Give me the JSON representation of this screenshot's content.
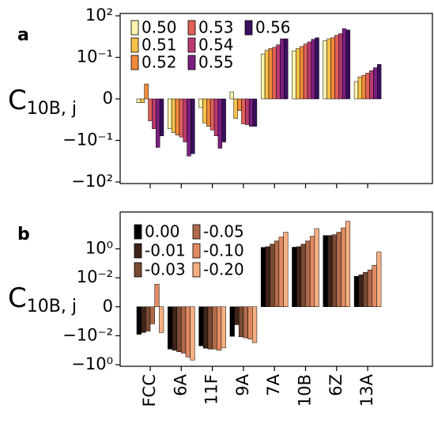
{
  "chart_data": [
    {
      "type": "bar",
      "panel": "a",
      "ylabel": "C",
      "ylabel_sub": "10B, j",
      "yscale": "symlog",
      "categories": [
        null,
        null,
        null,
        null,
        null,
        null,
        null,
        null
      ],
      "ylim": [
        -100,
        100
      ],
      "yticks": [
        {
          "value": 100,
          "label": "10²"
        },
        {
          "value": 0.1,
          "label": "10⁻¹"
        },
        0,
        {
          "value": -0.1,
          "label": "−10⁻¹"
        },
        {
          "value": -100,
          "label": "−10²"
        }
      ],
      "legend": "upper left",
      "legend_columns": 3,
      "series": [
        {
          "name": "0.50",
          "color": "#fbf3ae",
          "values": [
            -0.009,
            -0.072,
            -0.021,
            0.017,
            0.17,
            0.29,
            1.6,
            0.042
          ]
        },
        {
          "name": "0.51",
          "color": "#f8c24a",
          "values": [
            -0.009,
            -0.081,
            -0.058,
            -0.047,
            0.32,
            0.43,
            2.2,
            0.053
          ]
        },
        {
          "name": "0.52",
          "color": "#f08a3a",
          "values": [
            0.036,
            -0.087,
            -0.066,
            -0.028,
            0.43,
            0.6,
            2.6,
            0.057
          ]
        },
        {
          "name": "0.53",
          "color": "#e0605a",
          "values": [
            -0.053,
            -0.092,
            -0.075,
            -0.06,
            0.54,
            0.91,
            3.9,
            0.062
          ]
        },
        {
          "name": "0.54",
          "color": "#b83a70",
          "values": [
            -0.072,
            -0.13,
            -0.089,
            -0.062,
            0.8,
            1.3,
            5.1,
            0.068
          ]
        },
        {
          "name": "0.55",
          "color": "#7a1f80",
          "values": [
            -0.32,
            -1.35,
            -0.37,
            -0.066,
            2.2,
            2.0,
            12,
            0.075
          ]
        },
        {
          "name": "0.56",
          "color": "#3a0f5e",
          "values": [
            -0.089,
            -0.91,
            -0.13,
            -0.066,
            2.2,
            2.6,
            9.5,
            0.083
          ]
        }
      ]
    },
    {
      "type": "bar",
      "panel": "b",
      "ylabel": "C",
      "ylabel_sub": "10B, j",
      "yscale": "symlog",
      "categories": [
        "FCC",
        "6A",
        "11F",
        "9A",
        "7A",
        "10B",
        "6Z",
        "13A"
      ],
      "ylim": [
        -1,
        270
      ],
      "yticks": [
        {
          "value": 1,
          "label": "10⁰"
        },
        {
          "value": 0.01,
          "label": "10⁻²"
        },
        0,
        {
          "value": -0.01,
          "label": "−10⁻²"
        },
        {
          "value": -1,
          "label": "−10⁰"
        }
      ],
      "legend": "upper left",
      "legend_columns": 2,
      "series": [
        {
          "name": "0.00",
          "color": "#000000",
          "values": [
            -0.0095,
            -0.083,
            -0.05,
            -0.011,
            1.26,
            1.3,
            8.3,
            0.0126
          ]
        },
        {
          "name": "-0.01",
          "color": "#3d2318",
          "values": [
            -0.0089,
            -0.1,
            -0.073,
            -0.0062,
            1.4,
            1.4,
            8.3,
            0.016
          ]
        },
        {
          "name": "-0.03",
          "color": "#7a4a33",
          "values": [
            -0.0084,
            -0.13,
            -0.083,
            -0.012,
            2.1,
            2.1,
            9.4,
            0.024
          ]
        },
        {
          "name": "-0.05",
          "color": "#b06a4b",
          "values": [
            -0.0059,
            -0.16,
            -0.083,
            -0.014,
            3.5,
            3.5,
            14,
            0.035
          ]
        },
        {
          "name": "-0.10",
          "color": "#e08b62",
          "values": [
            0.0078,
            -0.29,
            -0.1,
            -0.017,
            6.5,
            7.3,
            28,
            0.073
          ]
        },
        {
          "name": "-0.20",
          "color": "#f6b083",
          "values": [
            -0.0089,
            -0.48,
            -0.07,
            -0.03,
            14,
            25,
            80,
            0.6
          ]
        }
      ]
    }
  ]
}
